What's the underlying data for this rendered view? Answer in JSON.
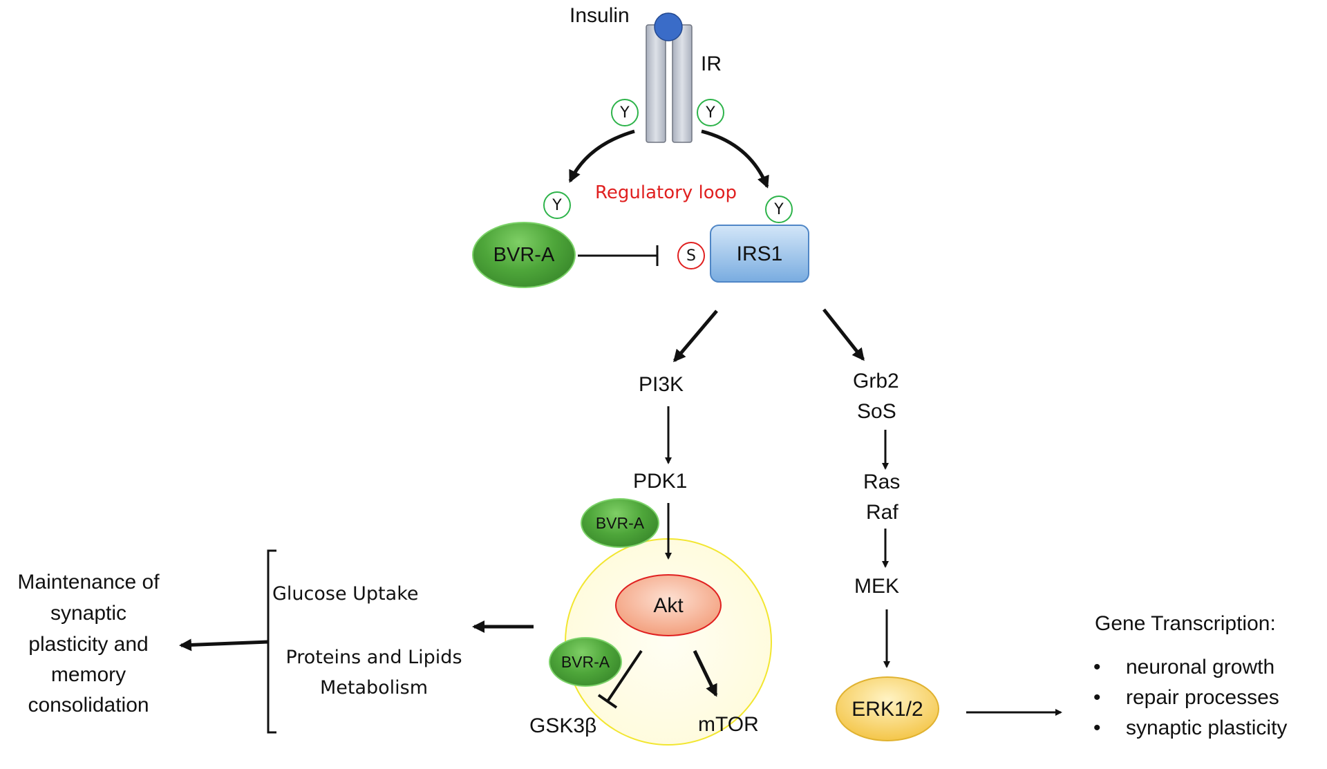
{
  "receptor": {
    "ligand": "Insulin",
    "label": "IR"
  },
  "phospho": {
    "tyrosine": "Y",
    "serine": "S"
  },
  "regulatory_loop": "Regulatory loop",
  "nodes": {
    "bvr_main": "BVR-A",
    "irs1": "IRS1",
    "pi3k": "PI3K",
    "pdk1": "PDK1",
    "bvr_pdk": "BVR-A",
    "akt": "Akt",
    "bvr_gsk": "BVR-A",
    "gsk3b": "GSK3β",
    "mtor": "mTOR",
    "grb2": "Grb2",
    "sos": "SoS",
    "ras": "Ras",
    "raf": "Raf",
    "mek": "MEK",
    "erk": "ERK1/2"
  },
  "effects": {
    "glucose_uptake": "Glucose Uptake",
    "proteins_lipids_line1": "Proteins and Lipids",
    "proteins_lipids_line2": "Metabolism"
  },
  "outcome": {
    "line1": "Maintenance of",
    "line2": "synaptic",
    "line3": "plasticity and",
    "line4": "memory",
    "line5": "consolidation"
  },
  "gene_transcription": {
    "title": "Gene Transcription:",
    "items": [
      "neuronal growth",
      "repair processes",
      "synaptic plasticity"
    ]
  },
  "colors": {
    "regulatory_loop": "#e02020",
    "receptor": "#c3c8d2",
    "insulin": "#3a6cc8",
    "irs1": "#8fbde6",
    "akt": "#f4a487",
    "erk": "#f7cf5a",
    "akt_circle_border": "#f2e630"
  }
}
